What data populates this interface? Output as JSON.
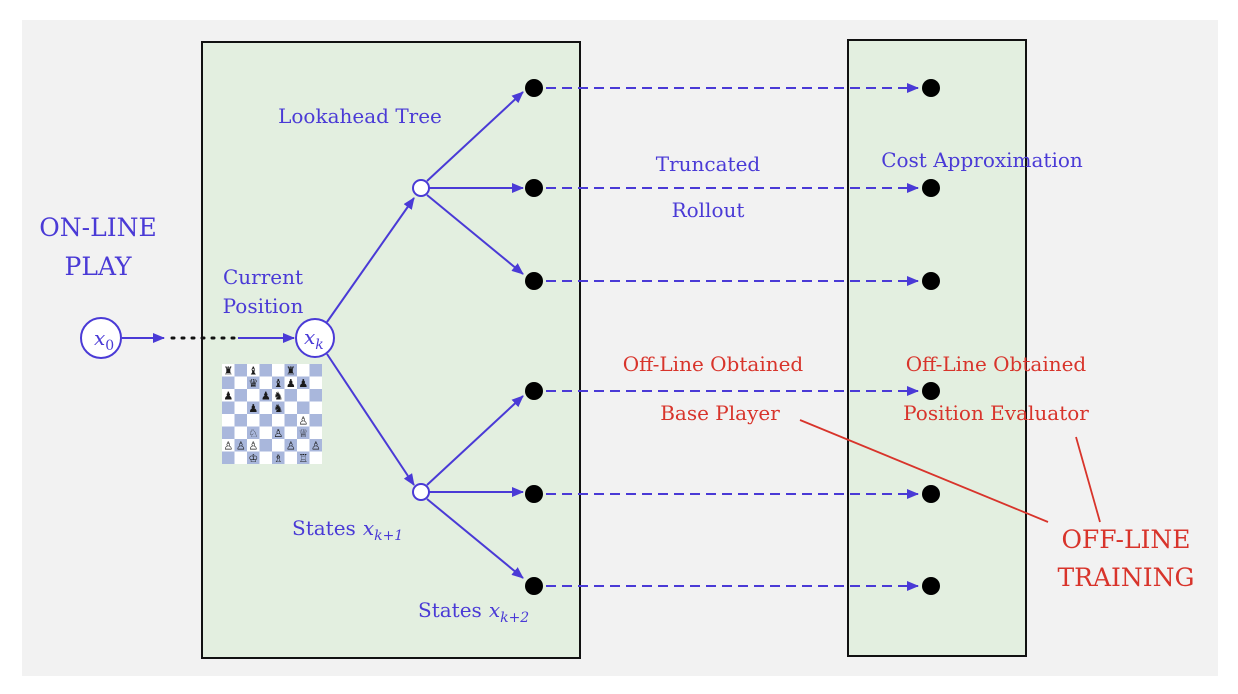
{
  "labels": {
    "online_play_line1": "ON-LINE",
    "online_play_line2": "PLAY",
    "current_position_line1": "Current",
    "current_position_line2": "Position",
    "lookahead_tree": "Lookahead Tree",
    "truncated": "Truncated",
    "rollout": "Rollout",
    "cost_approximation": "Cost Approximation",
    "offline_obtained_left": "Off-Line Obtained",
    "base_player": "Base Player",
    "offline_obtained_right": "Off-Line Obtained",
    "position_evaluator": "Position Evaluator",
    "offline_training_line1": "OFF-LINE",
    "offline_training_line2": "TRAINING",
    "states_k1_text": "States",
    "states_k2_text": "States"
  },
  "math": {
    "x0": "x",
    "x0_sub": "0",
    "xk": "x",
    "xk_sub": "k",
    "xk1": "x",
    "xk1_sub": "k+1",
    "xk2": "x",
    "xk2_sub": "k+2"
  },
  "colors": {
    "background": "#f2f2f2",
    "panel_fill": "#e3efe0",
    "blue": "#4a3ad6",
    "red": "#d8342b",
    "board_light": "#ffffff",
    "board_dark": "#a9b7dc"
  },
  "icons": {
    "chessboard": "chessboard-icon"
  }
}
